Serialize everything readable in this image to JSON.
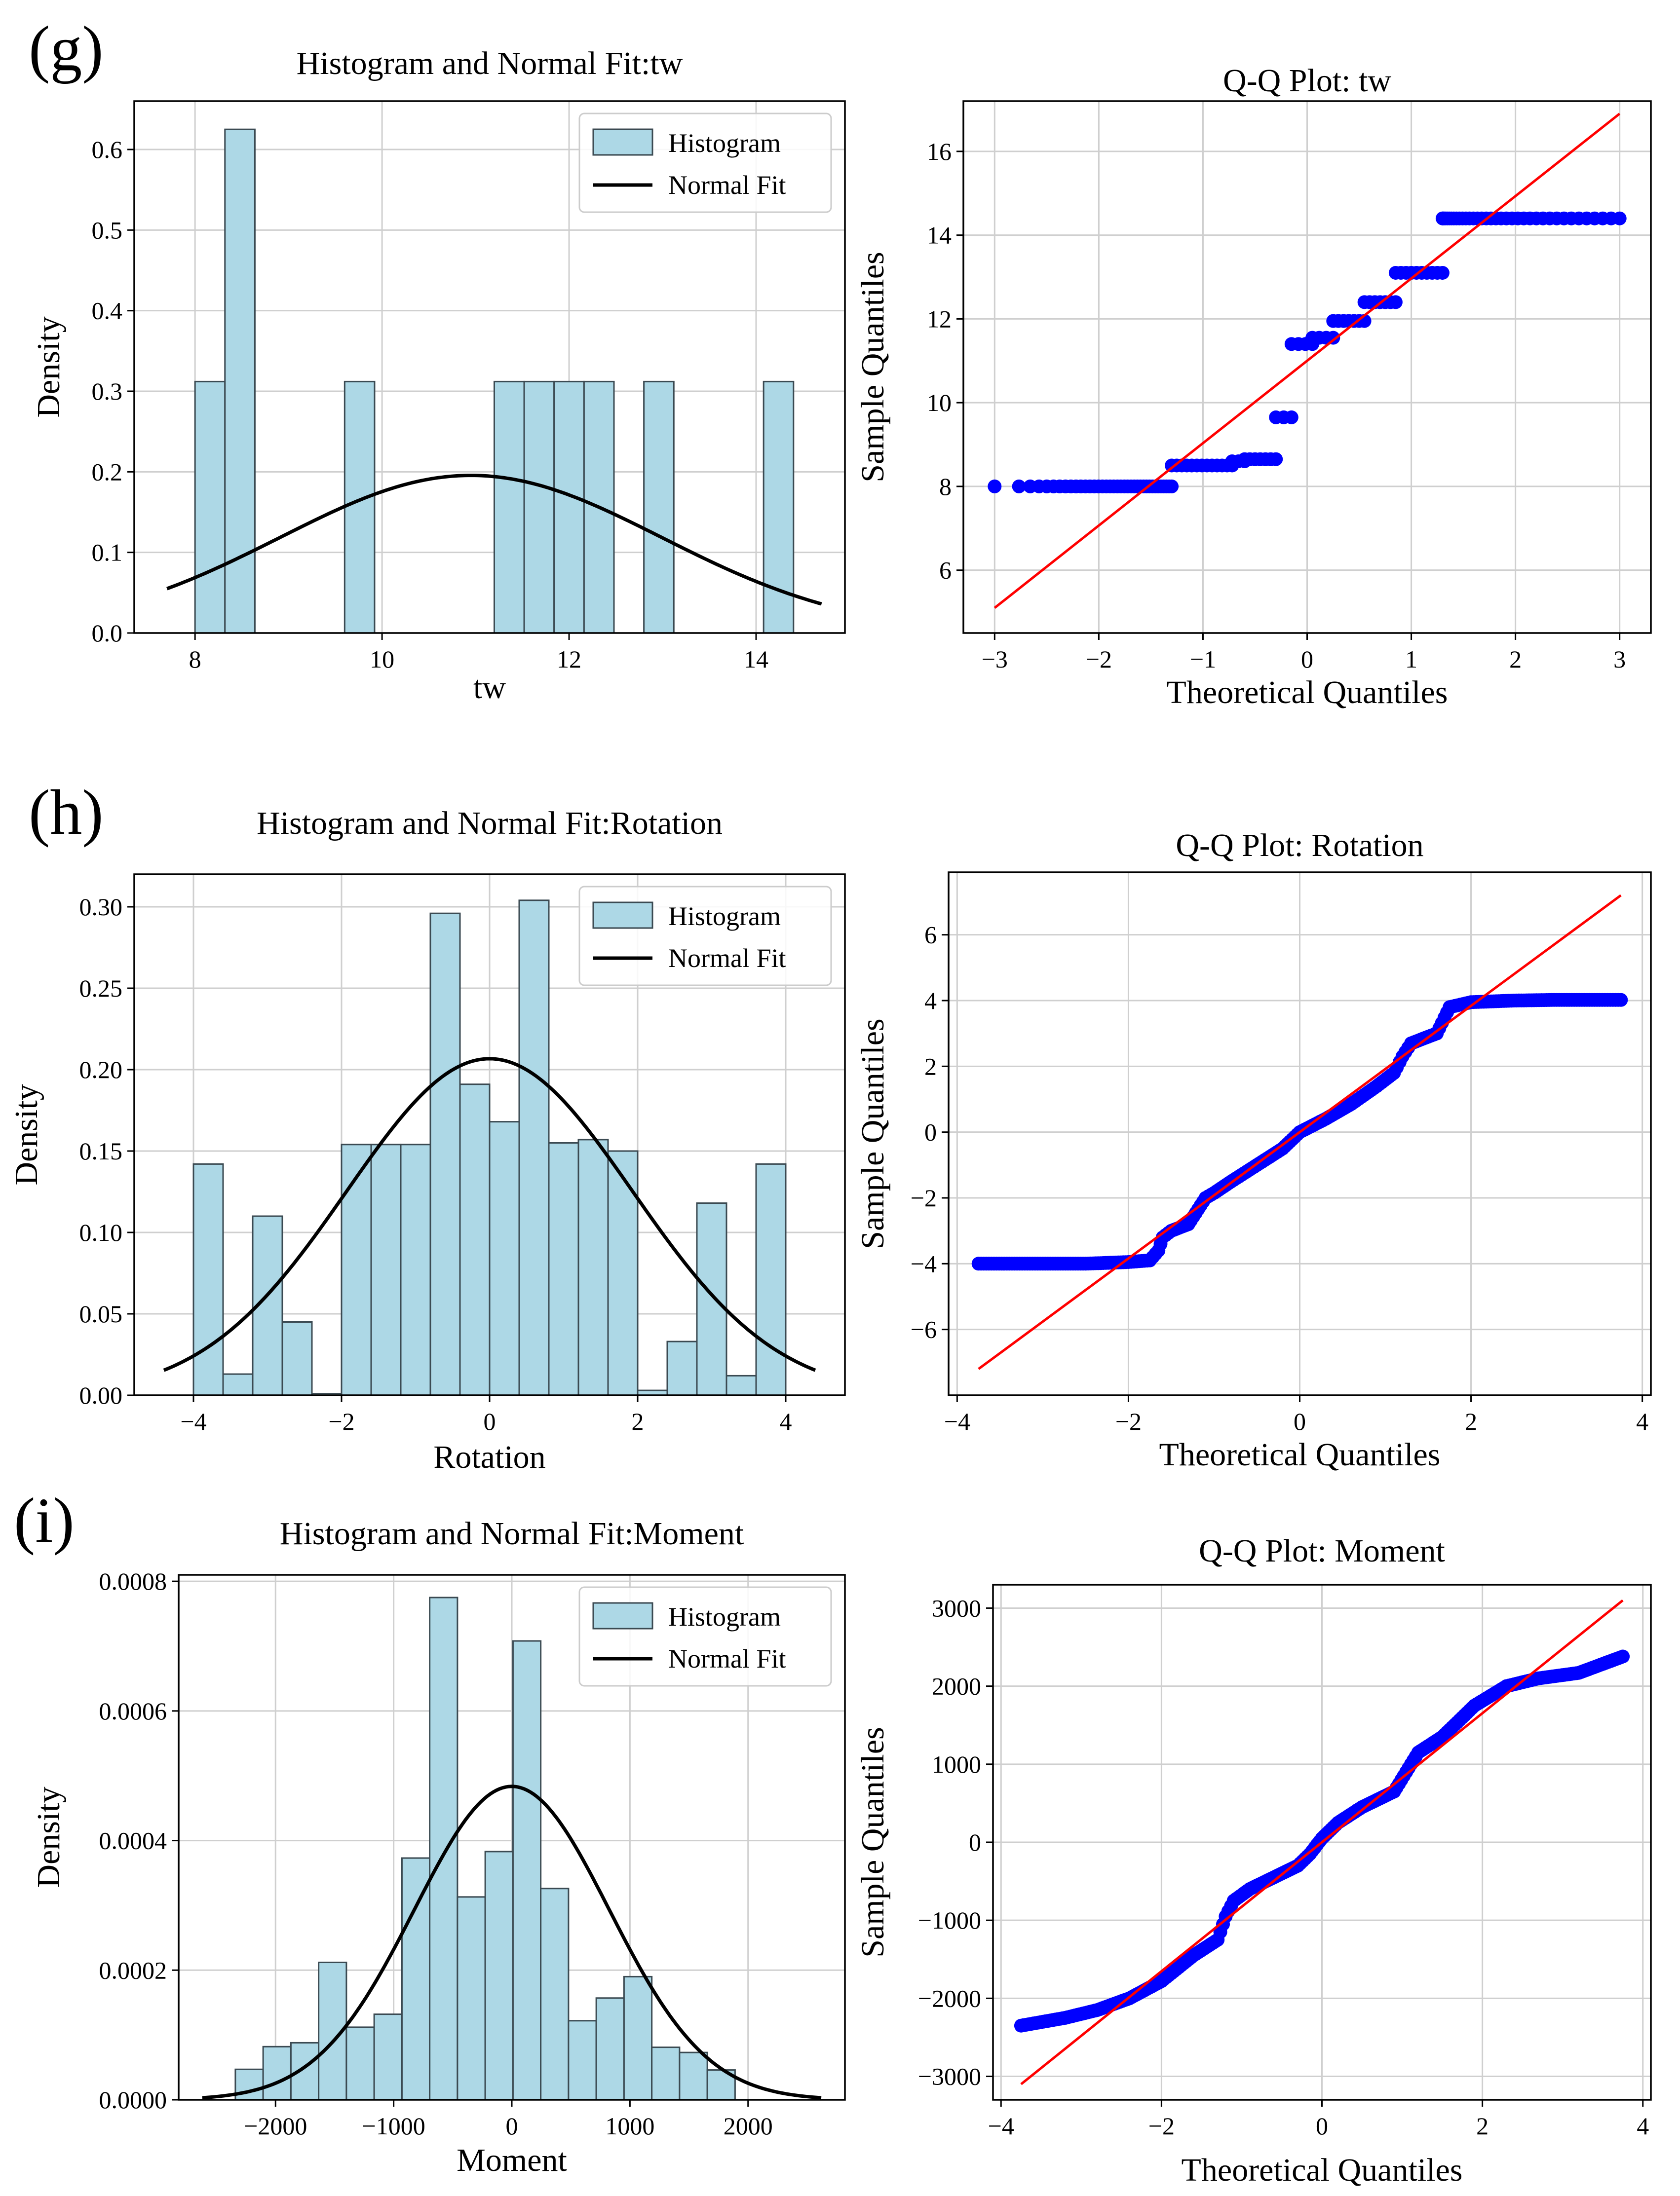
{
  "figure": {
    "panels": [
      {
        "label": "(g)"
      },
      {
        "label": "(h)"
      },
      {
        "label": "(i)"
      }
    ]
  },
  "colors": {
    "bar_fill": "#add8e6",
    "bar_stroke": "#3b4a52",
    "fit_line": "#000000",
    "qq_points": "#0000ff",
    "qq_line": "#ff0000",
    "grid": "#cfcfcf"
  },
  "chart_data": [
    {
      "id": "hist_tw",
      "type": "bar",
      "title": "Histogram and Normal Fit:tw",
      "xlabel": "tw",
      "ylabel": "Density",
      "xlim": [
        7.35,
        14.95
      ],
      "ylim": [
        0,
        0.66
      ],
      "xticks": [
        8,
        10,
        12,
        14
      ],
      "xtick_labels": [
        "8",
        "10",
        "12",
        "14"
      ],
      "yticks": [
        0.0,
        0.1,
        0.2,
        0.3,
        0.4,
        0.5,
        0.6
      ],
      "ytick_labels": [
        "0.0",
        "0.1",
        "0.2",
        "0.3",
        "0.4",
        "0.5",
        "0.6"
      ],
      "bin_width": 0.32,
      "bins": [
        {
          "x0": 8.0,
          "value": 0.312
        },
        {
          "x0": 8.32,
          "value": 0.625
        },
        {
          "x0": 9.6,
          "value": 0.312
        },
        {
          "x0": 11.2,
          "value": 0.312
        },
        {
          "x0": 11.52,
          "value": 0.312
        },
        {
          "x0": 11.84,
          "value": 0.312
        },
        {
          "x0": 12.16,
          "value": 0.312
        },
        {
          "x0": 12.8,
          "value": 0.312
        },
        {
          "x0": 14.08,
          "value": 0.312
        }
      ],
      "normal_fit": {
        "mean": 10.95,
        "std": 2.04,
        "x_range": [
          7.7,
          14.7
        ]
      },
      "legend": {
        "position": "top-right",
        "entries": [
          "Histogram",
          "Normal Fit"
        ]
      }
    },
    {
      "id": "qq_tw",
      "type": "scatter",
      "title": "Q-Q Plot: tw",
      "xlabel": "Theoretical Quantiles",
      "ylabel": "Sample Quantiles",
      "xlim": [
        -3.3,
        3.3
      ],
      "ylim": [
        4.5,
        17.2
      ],
      "xticks": [
        -3,
        -2,
        -1,
        0,
        1,
        2,
        3
      ],
      "xtick_labels": [
        "−3",
        "−2",
        "−1",
        "0",
        "1",
        "2",
        "3"
      ],
      "yticks": [
        6,
        8,
        10,
        12,
        14,
        16
      ],
      "ytick_labels": [
        "6",
        "8",
        "10",
        "12",
        "14",
        "16"
      ],
      "reference_line": {
        "x": [
          -3.0,
          3.0
        ],
        "y": [
          5.1,
          16.9
        ]
      },
      "steps": [
        {
          "x0": -3.0,
          "x1": -1.3,
          "y": 8.0
        },
        {
          "x0": -1.3,
          "x1": -0.72,
          "y": 8.5
        },
        {
          "x0": -0.72,
          "x1": -0.6,
          "y": 8.6
        },
        {
          "x0": -0.6,
          "x1": -0.3,
          "y": 8.65
        },
        {
          "x0": -0.3,
          "x1": -0.15,
          "y": 9.65
        },
        {
          "x0": -0.15,
          "x1": 0.05,
          "y": 11.4
        },
        {
          "x0": 0.05,
          "x1": 0.25,
          "y": 11.55
        },
        {
          "x0": 0.25,
          "x1": 0.55,
          "y": 11.95
        },
        {
          "x0": 0.55,
          "x1": 0.85,
          "y": 12.4
        },
        {
          "x0": 0.85,
          "x1": 1.3,
          "y": 13.1
        },
        {
          "x0": 1.3,
          "x1": 3.0,
          "y": 14.4
        }
      ]
    },
    {
      "id": "hist_rotation",
      "type": "bar",
      "title": "Histogram and Normal Fit:Rotation",
      "xlabel": "Rotation",
      "ylabel": "Density",
      "xlim": [
        -4.8,
        4.8
      ],
      "ylim": [
        0,
        0.32
      ],
      "xticks": [
        -4,
        -2,
        0,
        2,
        4
      ],
      "xtick_labels": [
        "−4",
        "−2",
        "0",
        "2",
        "4"
      ],
      "yticks": [
        0.0,
        0.05,
        0.1,
        0.15,
        0.2,
        0.25,
        0.3
      ],
      "ytick_labels": [
        "0.00",
        "0.05",
        "0.10",
        "0.15",
        "0.20",
        "0.25",
        "0.30"
      ],
      "bin_width": 0.4,
      "bins": [
        {
          "x0": -4.0,
          "value": 0.142
        },
        {
          "x0": -3.6,
          "value": 0.013
        },
        {
          "x0": -3.2,
          "value": 0.11
        },
        {
          "x0": -2.8,
          "value": 0.045
        },
        {
          "x0": -2.4,
          "value": 0.001
        },
        {
          "x0": -2.0,
          "value": 0.154
        },
        {
          "x0": -1.6,
          "value": 0.154
        },
        {
          "x0": -1.2,
          "value": 0.154
        },
        {
          "x0": -0.8,
          "value": 0.296
        },
        {
          "x0": -0.4,
          "value": 0.191
        },
        {
          "x0": 0.0,
          "value": 0.168
        },
        {
          "x0": 0.4,
          "value": 0.304
        },
        {
          "x0": 0.8,
          "value": 0.155
        },
        {
          "x0": 1.2,
          "value": 0.157
        },
        {
          "x0": 1.6,
          "value": 0.15
        },
        {
          "x0": 2.0,
          "value": 0.003
        },
        {
          "x0": 2.4,
          "value": 0.033
        },
        {
          "x0": 2.8,
          "value": 0.118
        },
        {
          "x0": 3.2,
          "value": 0.012
        },
        {
          "x0": 3.6,
          "value": 0.142
        }
      ],
      "normal_fit": {
        "mean": 0.0,
        "std": 1.93,
        "x_range": [
          -4.4,
          4.4
        ]
      },
      "legend": {
        "position": "top-right",
        "entries": [
          "Histogram",
          "Normal Fit"
        ]
      }
    },
    {
      "id": "qq_rotation",
      "type": "scatter",
      "title": "Q-Q Plot: Rotation",
      "xlabel": "Theoretical Quantiles",
      "ylabel": "Sample Quantiles",
      "xlim": [
        -4.1,
        4.1
      ],
      "ylim": [
        -8.0,
        7.9
      ],
      "xticks": [
        -4,
        -2,
        0,
        2,
        4
      ],
      "xtick_labels": [
        "−4",
        "−2",
        "0",
        "2",
        "4"
      ],
      "yticks": [
        -6,
        -4,
        -2,
        0,
        2,
        4,
        6
      ],
      "ytick_labels": [
        "−6",
        "−4",
        "−2",
        "0",
        "2",
        "4",
        "6"
      ],
      "reference_line": {
        "x": [
          -3.75,
          3.75
        ],
        "y": [
          -7.2,
          7.2
        ]
      },
      "curve": {
        "x": [
          -3.75,
          -3.0,
          -2.5,
          -2.0,
          -1.75,
          -1.65,
          -1.6,
          -1.5,
          -1.3,
          -1.1,
          -1.0,
          -0.8,
          -0.5,
          -0.2,
          0.0,
          0.3,
          0.6,
          0.9,
          1.1,
          1.2,
          1.3,
          1.5,
          1.6,
          1.75,
          2.0,
          2.5,
          3.0,
          3.5,
          3.75
        ],
        "y": [
          -4.0,
          -4.0,
          -4.0,
          -3.95,
          -3.9,
          -3.6,
          -3.2,
          -3.0,
          -2.8,
          -2.0,
          -1.85,
          -1.5,
          -1.0,
          -0.5,
          0.0,
          0.4,
          0.85,
          1.4,
          1.8,
          2.3,
          2.7,
          2.9,
          3.0,
          3.8,
          3.95,
          4.0,
          4.02,
          4.02,
          4.02
        ]
      }
    },
    {
      "id": "hist_moment",
      "type": "bar",
      "title": "Histogram and Normal Fit:Moment",
      "xlabel": "Moment",
      "ylabel": "Density",
      "xlim": [
        -2820,
        2820
      ],
      "ylim": [
        0,
        0.00081
      ],
      "xticks": [
        -2000,
        -1000,
        0,
        1000,
        2000
      ],
      "xtick_labels": [
        "−2000",
        "−1000",
        "0",
        "1000",
        "2000"
      ],
      "yticks": [
        0,
        0.0002,
        0.0004,
        0.0006,
        0.0008
      ],
      "ytick_labels": [
        "0.0000",
        "0.0002",
        "0.0004",
        "0.0006",
        "0.0008"
      ],
      "bin_width": 235,
      "bins": [
        {
          "x0": -2340,
          "value": 4.7e-05
        },
        {
          "x0": -2105,
          "value": 8.2e-05
        },
        {
          "x0": -1870,
          "value": 8.8e-05
        },
        {
          "x0": -1635,
          "value": 0.000212
        },
        {
          "x0": -1400,
          "value": 0.000112
        },
        {
          "x0": -1165,
          "value": 0.000132
        },
        {
          "x0": -930,
          "value": 0.000373
        },
        {
          "x0": -695,
          "value": 0.000775
        },
        {
          "x0": -460,
          "value": 0.000313
        },
        {
          "x0": -225,
          "value": 0.000383
        },
        {
          "x0": 10,
          "value": 0.000708
        },
        {
          "x0": 245,
          "value": 0.000326
        },
        {
          "x0": 480,
          "value": 0.000122
        },
        {
          "x0": 715,
          "value": 0.000157
        },
        {
          "x0": 950,
          "value": 0.00019
        },
        {
          "x0": 1185,
          "value": 8.1e-05
        },
        {
          "x0": 1420,
          "value": 7.3e-05
        },
        {
          "x0": 1655,
          "value": 4.6e-05
        }
      ],
      "normal_fit": {
        "mean": 0,
        "std": 825,
        "x_range": [
          -2620,
          2620
        ]
      },
      "legend": {
        "position": "top-right",
        "entries": [
          "Histogram",
          "Normal Fit"
        ]
      }
    },
    {
      "id": "qq_moment",
      "type": "scatter",
      "title": "Q-Q Plot: Moment",
      "xlabel": "Theoretical Quantiles",
      "ylabel": "Sample Quantiles",
      "xlim": [
        -4.1,
        4.1
      ],
      "ylim": [
        -3300,
        3300
      ],
      "xticks": [
        -4,
        -2,
        0,
        2,
        4
      ],
      "xtick_labels": [
        "−4",
        "−2",
        "0",
        "2",
        "4"
      ],
      "yticks": [
        -3000,
        -2000,
        -1000,
        0,
        1000,
        2000,
        3000
      ],
      "ytick_labels": [
        "−3000",
        "−2000",
        "−1000",
        "0",
        "1000",
        "2000",
        "3000"
      ],
      "reference_line": {
        "x": [
          -3.75,
          3.75
        ],
        "y": [
          -3100,
          3100
        ]
      },
      "curve": {
        "x": [
          -3.75,
          -3.2,
          -2.8,
          -2.4,
          -2.0,
          -1.6,
          -1.3,
          -1.2,
          -1.1,
          -0.9,
          -0.6,
          -0.3,
          -0.15,
          0.0,
          0.2,
          0.5,
          0.9,
          1.05,
          1.2,
          1.5,
          1.9,
          2.3,
          2.7,
          3.2,
          3.75
        ],
        "y": [
          -2350,
          -2250,
          -2150,
          -2000,
          -1780,
          -1450,
          -1250,
          -950,
          -750,
          -600,
          -450,
          -300,
          -150,
          50,
          250,
          450,
          650,
          900,
          1150,
          1350,
          1750,
          2000,
          2100,
          2170,
          2380
        ]
      }
    }
  ]
}
